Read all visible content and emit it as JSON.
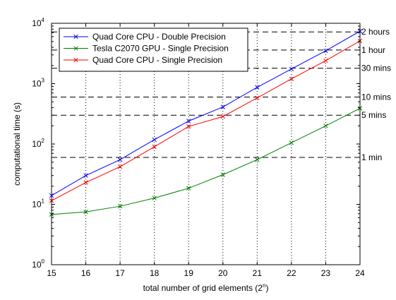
{
  "chart_data": {
    "type": "line",
    "title": "",
    "xlabel": "total number of grid elements (2",
    "xlabel_sup": "n",
    "xlabel_close": ")",
    "ylabel": "computational time (s)",
    "yscale": "log",
    "xlim": [
      15,
      24
    ],
    "ylim": [
      1,
      10000
    ],
    "grid": "x-dotted",
    "legend_position": "top-left",
    "x_ticks": [
      "15",
      "16",
      "17",
      "18",
      "19",
      "20",
      "21",
      "22",
      "23",
      "24"
    ],
    "y_ticks": [
      {
        "base": "10",
        "exp": "0",
        "value": 1
      },
      {
        "base": "10",
        "exp": "1",
        "value": 10
      },
      {
        "base": "10",
        "exp": "2",
        "value": 100
      },
      {
        "base": "10",
        "exp": "3",
        "value": 1000
      },
      {
        "base": "10",
        "exp": "4",
        "value": 10000
      }
    ],
    "x": [
      15,
      16,
      17,
      18,
      19,
      20,
      21,
      22,
      23,
      24
    ],
    "series": [
      {
        "name": "Quad Core CPU - Double Precision",
        "color": "#0000ff",
        "values": [
          14,
          30,
          55,
          118,
          240,
          410,
          870,
          1750,
          3500,
          7400
        ]
      },
      {
        "name": "Tesla C2070 GPU - Single Precision",
        "color": "#008000",
        "values": [
          6.8,
          7.5,
          9.3,
          12.7,
          18.5,
          31,
          55,
          105,
          200,
          390
        ]
      },
      {
        "name": "Quad Core CPU - Single Precision",
        "color": "#ff0000",
        "values": [
          11.5,
          23,
          42,
          90,
          195,
          285,
          580,
          1200,
          2400,
          5100
        ]
      }
    ],
    "reference_lines": [
      {
        "label": "2 hours",
        "value": 7200
      },
      {
        "label": "1 hour",
        "value": 3600
      },
      {
        "label": "30 mins",
        "value": 1800
      },
      {
        "label": "10 mins",
        "value": 600
      },
      {
        "label": "5 mins",
        "value": 300
      },
      {
        "label": "1 min",
        "value": 60
      }
    ]
  }
}
